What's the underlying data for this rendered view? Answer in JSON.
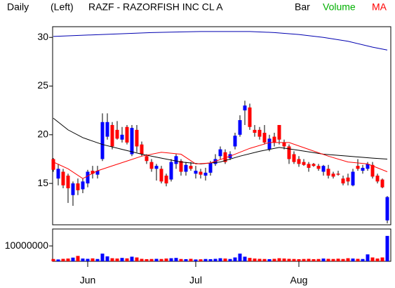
{
  "chart_data": {
    "type": "candlestick",
    "period": "Daily",
    "side": "(Left)",
    "title": "RAZF - RAZORFISH INC CL A",
    "legend": [
      {
        "text": "Bar",
        "color": "#000000"
      },
      {
        "text": "Volume",
        "color": "#00b000"
      },
      {
        "text": "MA",
        "color": "#ff0000"
      }
    ],
    "up_color": "#0000ff",
    "down_color": "#ff0000",
    "categories": [
      null,
      null,
      null,
      null,
      null,
      null,
      null,
      "Jun",
      null,
      null,
      null,
      null,
      null,
      null,
      null,
      null,
      null,
      null,
      null,
      null,
      null,
      null,
      null,
      null,
      null,
      null,
      null,
      null,
      null,
      "Jul",
      null,
      null,
      null,
      null,
      null,
      null,
      null,
      null,
      null,
      null,
      null,
      null,
      null,
      null,
      null,
      null,
      null,
      null,
      null,
      null,
      "Aug",
      null,
      null,
      null,
      null,
      null,
      null,
      null,
      null,
      null,
      null,
      null,
      null,
      null,
      null,
      null,
      null,
      null,
      null
    ],
    "open": [
      17.5,
      15.5,
      16.2,
      15.8,
      13.8,
      15.0,
      14.4,
      15.0,
      16.3,
      15.9,
      17.5,
      19.8,
      21.0,
      20.5,
      19.5,
      20.8,
      18.0,
      20.5,
      19.0,
      17.8,
      17.2,
      16.5,
      16.5,
      15.8,
      15.4,
      17.0,
      17.3,
      16.2,
      16.8,
      16.0,
      16.2,
      15.8,
      16.1,
      17.0,
      17.8,
      18.2,
      17.6,
      18.8,
      20.0,
      22.5,
      22.8,
      20.5,
      20.5,
      20.2,
      18.5,
      19.8,
      21.0,
      19.2,
      18.8,
      18.0,
      17.5,
      17.2,
      17.0,
      17.0,
      16.8,
      16.2,
      16.5,
      16.0,
      16.0,
      15.5,
      15.6,
      14.8,
      16.8,
      16.3,
      16.5,
      16.9,
      15.8,
      15.4,
      11.2
    ],
    "high": [
      17.6,
      17.0,
      16.5,
      16.0,
      15.2,
      15.5,
      15.5,
      16.4,
      16.8,
      16.8,
      22.2,
      22.2,
      21.3,
      21.4,
      20.8,
      21.0,
      21.0,
      21.0,
      19.3,
      18.0,
      17.5,
      17.0,
      16.8,
      16.0,
      17.5,
      18.0,
      17.5,
      17.2,
      17.2,
      16.8,
      16.5,
      16.6,
      17.3,
      18.0,
      18.8,
      18.5,
      18.3,
      20.2,
      22.0,
      23.5,
      23.2,
      21.0,
      20.8,
      21.0,
      20.0,
      20.2,
      21.0,
      19.5,
      19.0,
      18.3,
      17.8,
      17.5,
      17.2,
      17.1,
      17.0,
      16.9,
      16.9,
      16.2,
      16.3,
      15.8,
      16.0,
      16.5,
      17.5,
      16.9,
      17.2,
      17.2,
      16.0,
      15.5,
      13.7
    ],
    "low": [
      16.2,
      14.8,
      14.5,
      13.0,
      12.7,
      13.8,
      14.0,
      14.6,
      15.5,
      15.5,
      17.3,
      19.5,
      18.5,
      19.5,
      19.2,
      19.0,
      17.8,
      18.2,
      17.8,
      17.0,
      16.2,
      15.3,
      15.0,
      14.7,
      15.2,
      16.5,
      15.8,
      15.8,
      16.3,
      15.5,
      15.5,
      15.3,
      15.8,
      16.8,
      17.5,
      17.0,
      17.4,
      18.5,
      19.8,
      21.0,
      20.5,
      19.8,
      19.5,
      19.0,
      18.3,
      18.8,
      19.0,
      18.5,
      17.0,
      17.0,
      16.7,
      16.8,
      16.2,
      16.7,
      16.3,
      15.8,
      15.5,
      15.5,
      15.8,
      14.8,
      14.8,
      14.7,
      16.3,
      16.0,
      16.3,
      15.5,
      15.0,
      14.5,
      10.9
    ],
    "close": [
      16.4,
      16.5,
      14.8,
      14.5,
      15.0,
      14.3,
      15.2,
      16.2,
      16.0,
      16.3,
      21.3,
      21.3,
      18.8,
      19.6,
      20.0,
      19.2,
      20.7,
      18.8,
      18.0,
      17.3,
      16.5,
      16.8,
      15.2,
      15.0,
      17.2,
      17.8,
      16.2,
      16.9,
      16.5,
      16.3,
      15.9,
      16.1,
      17.1,
      17.5,
      18.5,
      17.2,
      18.0,
      19.9,
      21.5,
      23.0,
      20.8,
      20.2,
      19.8,
      19.2,
      19.6,
      19.2,
      19.5,
      18.8,
      17.5,
      17.2,
      17.0,
      16.9,
      16.6,
      16.8,
      16.5,
      16.8,
      15.8,
      15.7,
      15.9,
      15.0,
      15.2,
      16.2,
      16.5,
      16.6,
      17.0,
      15.7,
      15.2,
      14.6,
      13.6
    ],
    "ylim": [
      10.75,
      31.1
    ],
    "yticks": [
      15,
      20,
      25,
      30
    ],
    "ma": [
      {
        "color": "#0000b0",
        "x": [
          0,
          10,
          20,
          30,
          40,
          45,
          50,
          55,
          60,
          65,
          68
        ],
        "values": [
          30.1,
          30.3,
          30.5,
          30.6,
          30.6,
          30.5,
          30.3,
          30.0,
          29.6,
          29.0,
          28.7
        ]
      },
      {
        "color": "#000000",
        "x": [
          0,
          3,
          6,
          10,
          14,
          18,
          22,
          26,
          30,
          34,
          38,
          42,
          46,
          50,
          55,
          60,
          65,
          68
        ],
        "values": [
          21.7,
          20.5,
          19.7,
          19.0,
          18.5,
          18.0,
          17.6,
          17.2,
          17.0,
          17.2,
          17.8,
          18.3,
          18.7,
          18.4,
          18.0,
          17.8,
          17.6,
          17.5
        ]
      },
      {
        "color": "#ff0000",
        "x": [
          0,
          3,
          6,
          9,
          12,
          15,
          18,
          22,
          26,
          29,
          32,
          36,
          40,
          44,
          48,
          52,
          56,
          60,
          64,
          68
        ],
        "values": [
          17.2,
          16.5,
          15.5,
          16.3,
          16.8,
          17.3,
          17.8,
          18.2,
          18.0,
          17.0,
          17.1,
          17.8,
          18.6,
          19.2,
          19.2,
          18.5,
          17.8,
          17.2,
          17.0,
          16.2
        ]
      }
    ],
    "volume": {
      "values": [
        1500000,
        1200000,
        1600000,
        1800000,
        2400000,
        3500000,
        1800000,
        1600000,
        1900000,
        1500000,
        5000000,
        3200000,
        2000000,
        1800000,
        2200000,
        1900000,
        3000000,
        2500000,
        1600000,
        1400000,
        1500000,
        1600000,
        1500000,
        1800000,
        2000000,
        2200000,
        1500000,
        1400000,
        1600000,
        1200000,
        1300000,
        1500000,
        1400000,
        1600000,
        2000000,
        1800000,
        1500000,
        2500000,
        5000000,
        3000000,
        2200000,
        1800000,
        1600000,
        1500000,
        1400000,
        1600000,
        2000000,
        1800000,
        1600000,
        1500000,
        1400000,
        1500000,
        1600000,
        1400000,
        1500000,
        1800000,
        1600000,
        1500000,
        1700000,
        1500000,
        2000000,
        1800000,
        1600000,
        1500000,
        4500000,
        2500000,
        1800000,
        2500000,
        16500000
      ],
      "ylim": [
        0,
        21000000
      ],
      "yticks": [
        10000000
      ]
    }
  }
}
